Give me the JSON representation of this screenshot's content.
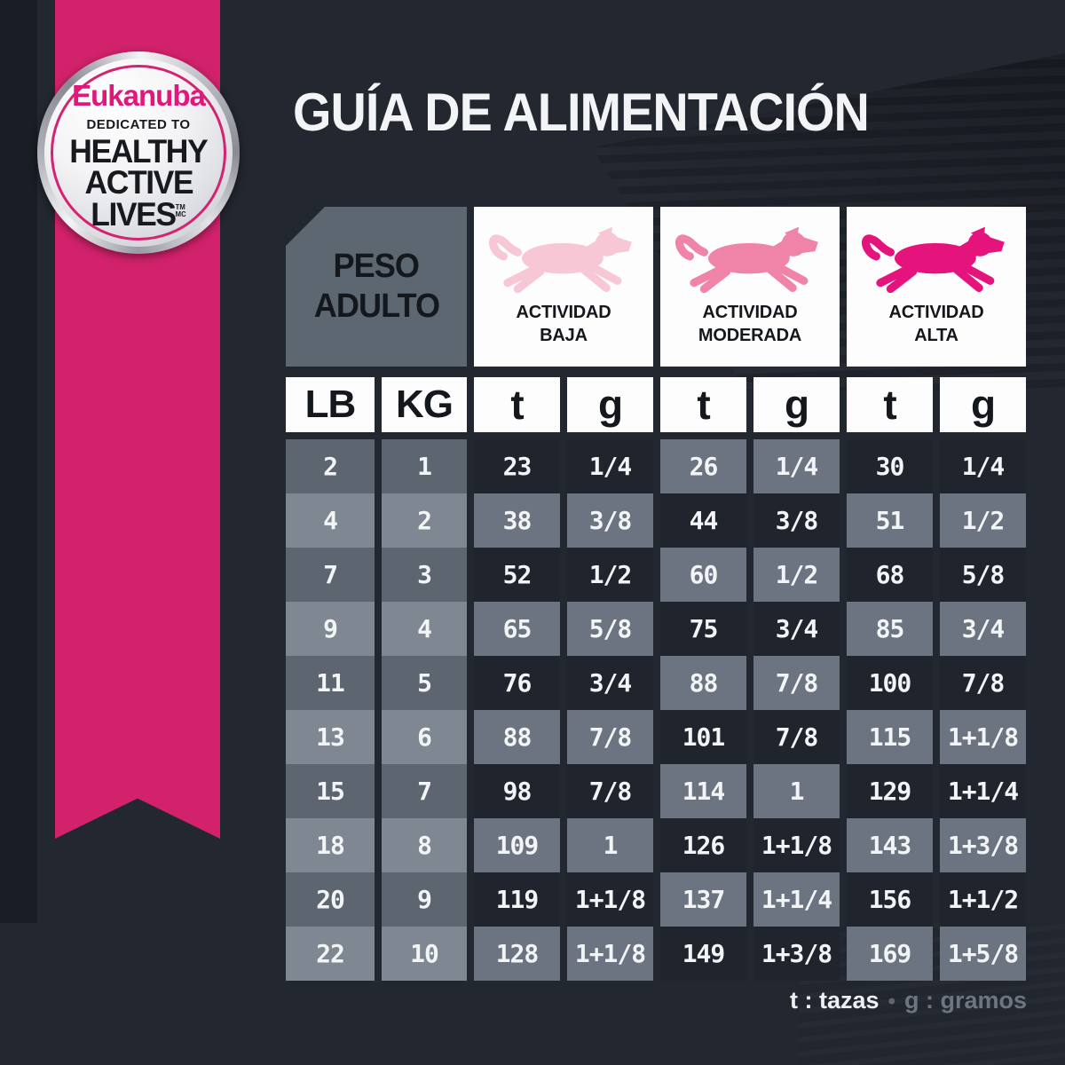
{
  "title": "GUÍA DE ALIMENTACIÓN",
  "badge": {
    "brand": "Eukanuba",
    "tagline": "DEDICATED TO",
    "line1": "HEALTHY",
    "line2": "ACTIVE",
    "line3": "LIVES",
    "tm": "TM",
    "mc": "MC"
  },
  "table": {
    "weight_line1": "PESO",
    "weight_line2": "ADULTO",
    "activities": [
      {
        "line1": "ACTIVIDAD",
        "line2": "BAJA"
      },
      {
        "line1": "ACTIVIDAD",
        "line2": "MODERADA"
      },
      {
        "line1": "ACTIVIDAD",
        "line2": "ALTA"
      }
    ],
    "unit_headers": [
      "LB",
      "KG",
      "t",
      "g",
      "t",
      "g",
      "t",
      "g"
    ],
    "rows": [
      {
        "lb": "2",
        "kg": "1",
        "cells": [
          "23",
          "1/4",
          "26",
          "1/4",
          "30",
          "1/4"
        ]
      },
      {
        "lb": "4",
        "kg": "2",
        "cells": [
          "38",
          "3/8",
          "44",
          "3/8",
          "51",
          "1/2"
        ]
      },
      {
        "lb": "7",
        "kg": "3",
        "cells": [
          "52",
          "1/2",
          "60",
          "1/2",
          "68",
          "5/8"
        ]
      },
      {
        "lb": "9",
        "kg": "4",
        "cells": [
          "65",
          "5/8",
          "75",
          "3/4",
          "85",
          "3/4"
        ]
      },
      {
        "lb": "11",
        "kg": "5",
        "cells": [
          "76",
          "3/4",
          "88",
          "7/8",
          "100",
          "7/8"
        ]
      },
      {
        "lb": "13",
        "kg": "6",
        "cells": [
          "88",
          "7/8",
          "101",
          "7/8",
          "115",
          "1+1/8"
        ]
      },
      {
        "lb": "15",
        "kg": "7",
        "cells": [
          "98",
          "7/8",
          "114",
          "1",
          "129",
          "1+1/4"
        ]
      },
      {
        "lb": "18",
        "kg": "8",
        "cells": [
          "109",
          "1",
          "126",
          "1+1/8",
          "143",
          "1+3/8"
        ]
      },
      {
        "lb": "20",
        "kg": "9",
        "cells": [
          "119",
          "1+1/8",
          "137",
          "1+1/4",
          "156",
          "1+1/2"
        ]
      },
      {
        "lb": "22",
        "kg": "10",
        "cells": [
          "128",
          "1+1/8",
          "149",
          "1+3/8",
          "169",
          "1+5/8"
        ]
      }
    ]
  },
  "legend": {
    "t": "t : tazas",
    "dot": "•",
    "g": "g : gramos"
  },
  "colors": {
    "background": "#232730",
    "ribbon_pink": "#d2226c",
    "brand_pink": "#e0187b",
    "activity_low_dog": "#f7c7d6",
    "activity_moderate_dog": "#f083a8",
    "activity_high_dog": "#e5147c",
    "cell_dark": "#1f242d",
    "cell_gray": "#6b7480",
    "weight_cell_dark": "#5d6570",
    "weight_cell_light": "#7e8792",
    "weight_header_box": "#5d6771",
    "header_box_white": "#fdfdfd"
  },
  "chart_data": {
    "type": "table",
    "title": "GUÍA DE ALIMENTACIÓN",
    "columns": [
      "LB",
      "KG",
      "ACTIVIDAD BAJA t",
      "ACTIVIDAD BAJA g",
      "ACTIVIDAD MODERADA t",
      "ACTIVIDAD MODERADA g",
      "ACTIVIDAD ALTA t",
      "ACTIVIDAD ALTA g"
    ],
    "rows": [
      [
        "2",
        "1",
        "23",
        "1/4",
        "26",
        "1/4",
        "30",
        "1/4"
      ],
      [
        "4",
        "2",
        "38",
        "3/8",
        "44",
        "3/8",
        "51",
        "1/2"
      ],
      [
        "7",
        "3",
        "52",
        "1/2",
        "60",
        "1/2",
        "68",
        "5/8"
      ],
      [
        "9",
        "4",
        "65",
        "5/8",
        "75",
        "3/4",
        "85",
        "3/4"
      ],
      [
        "11",
        "5",
        "76",
        "3/4",
        "88",
        "7/8",
        "100",
        "7/8"
      ],
      [
        "13",
        "6",
        "88",
        "7/8",
        "101",
        "7/8",
        "115",
        "1+1/8"
      ],
      [
        "15",
        "7",
        "98",
        "7/8",
        "114",
        "1",
        "129",
        "1+1/4"
      ],
      [
        "18",
        "8",
        "109",
        "1",
        "126",
        "1+1/8",
        "143",
        "1+3/8"
      ],
      [
        "20",
        "9",
        "119",
        "1+1/8",
        "137",
        "1+1/4",
        "156",
        "1+1/2"
      ],
      [
        "22",
        "10",
        "128",
        "1+1/8",
        "149",
        "1+3/8",
        "169",
        "1+5/8"
      ]
    ],
    "legend": "t : tazas • g : gramos"
  }
}
